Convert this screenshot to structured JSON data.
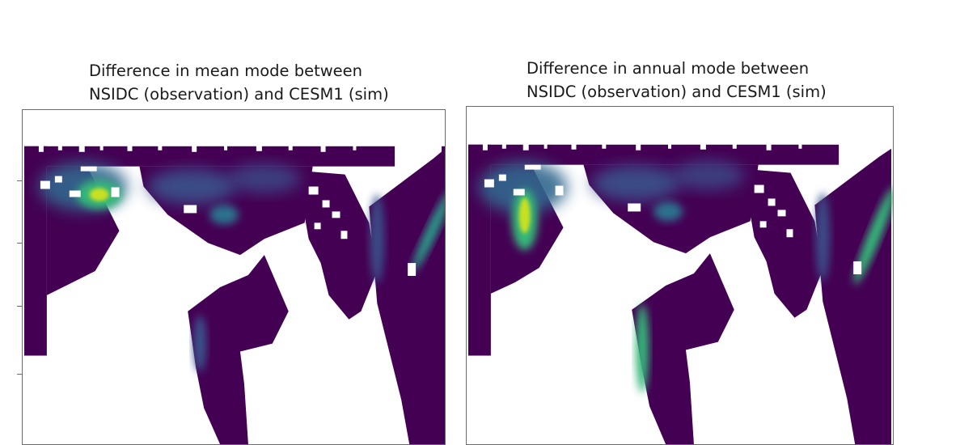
{
  "panels": [
    {
      "id": "mean",
      "title_line1": "Difference in mean mode between",
      "title_line2": "NSIDC (observation) and CESM1 (sim)"
    },
    {
      "id": "annual",
      "title_line1": "Difference in annual mode between",
      "title_line2": "NSIDC (observation) and CESM1 (sim)"
    }
  ],
  "colors": {
    "background": "#ffffff",
    "ocean_low": "#440154",
    "ocean_mid": "#3b528b",
    "ocean_high": "#21918c",
    "peak_green": "#5ec962",
    "peak_yellow": "#c8e020",
    "land": "#ffffff",
    "frame": "#6b6b6b"
  },
  "colormap": "viridis"
}
